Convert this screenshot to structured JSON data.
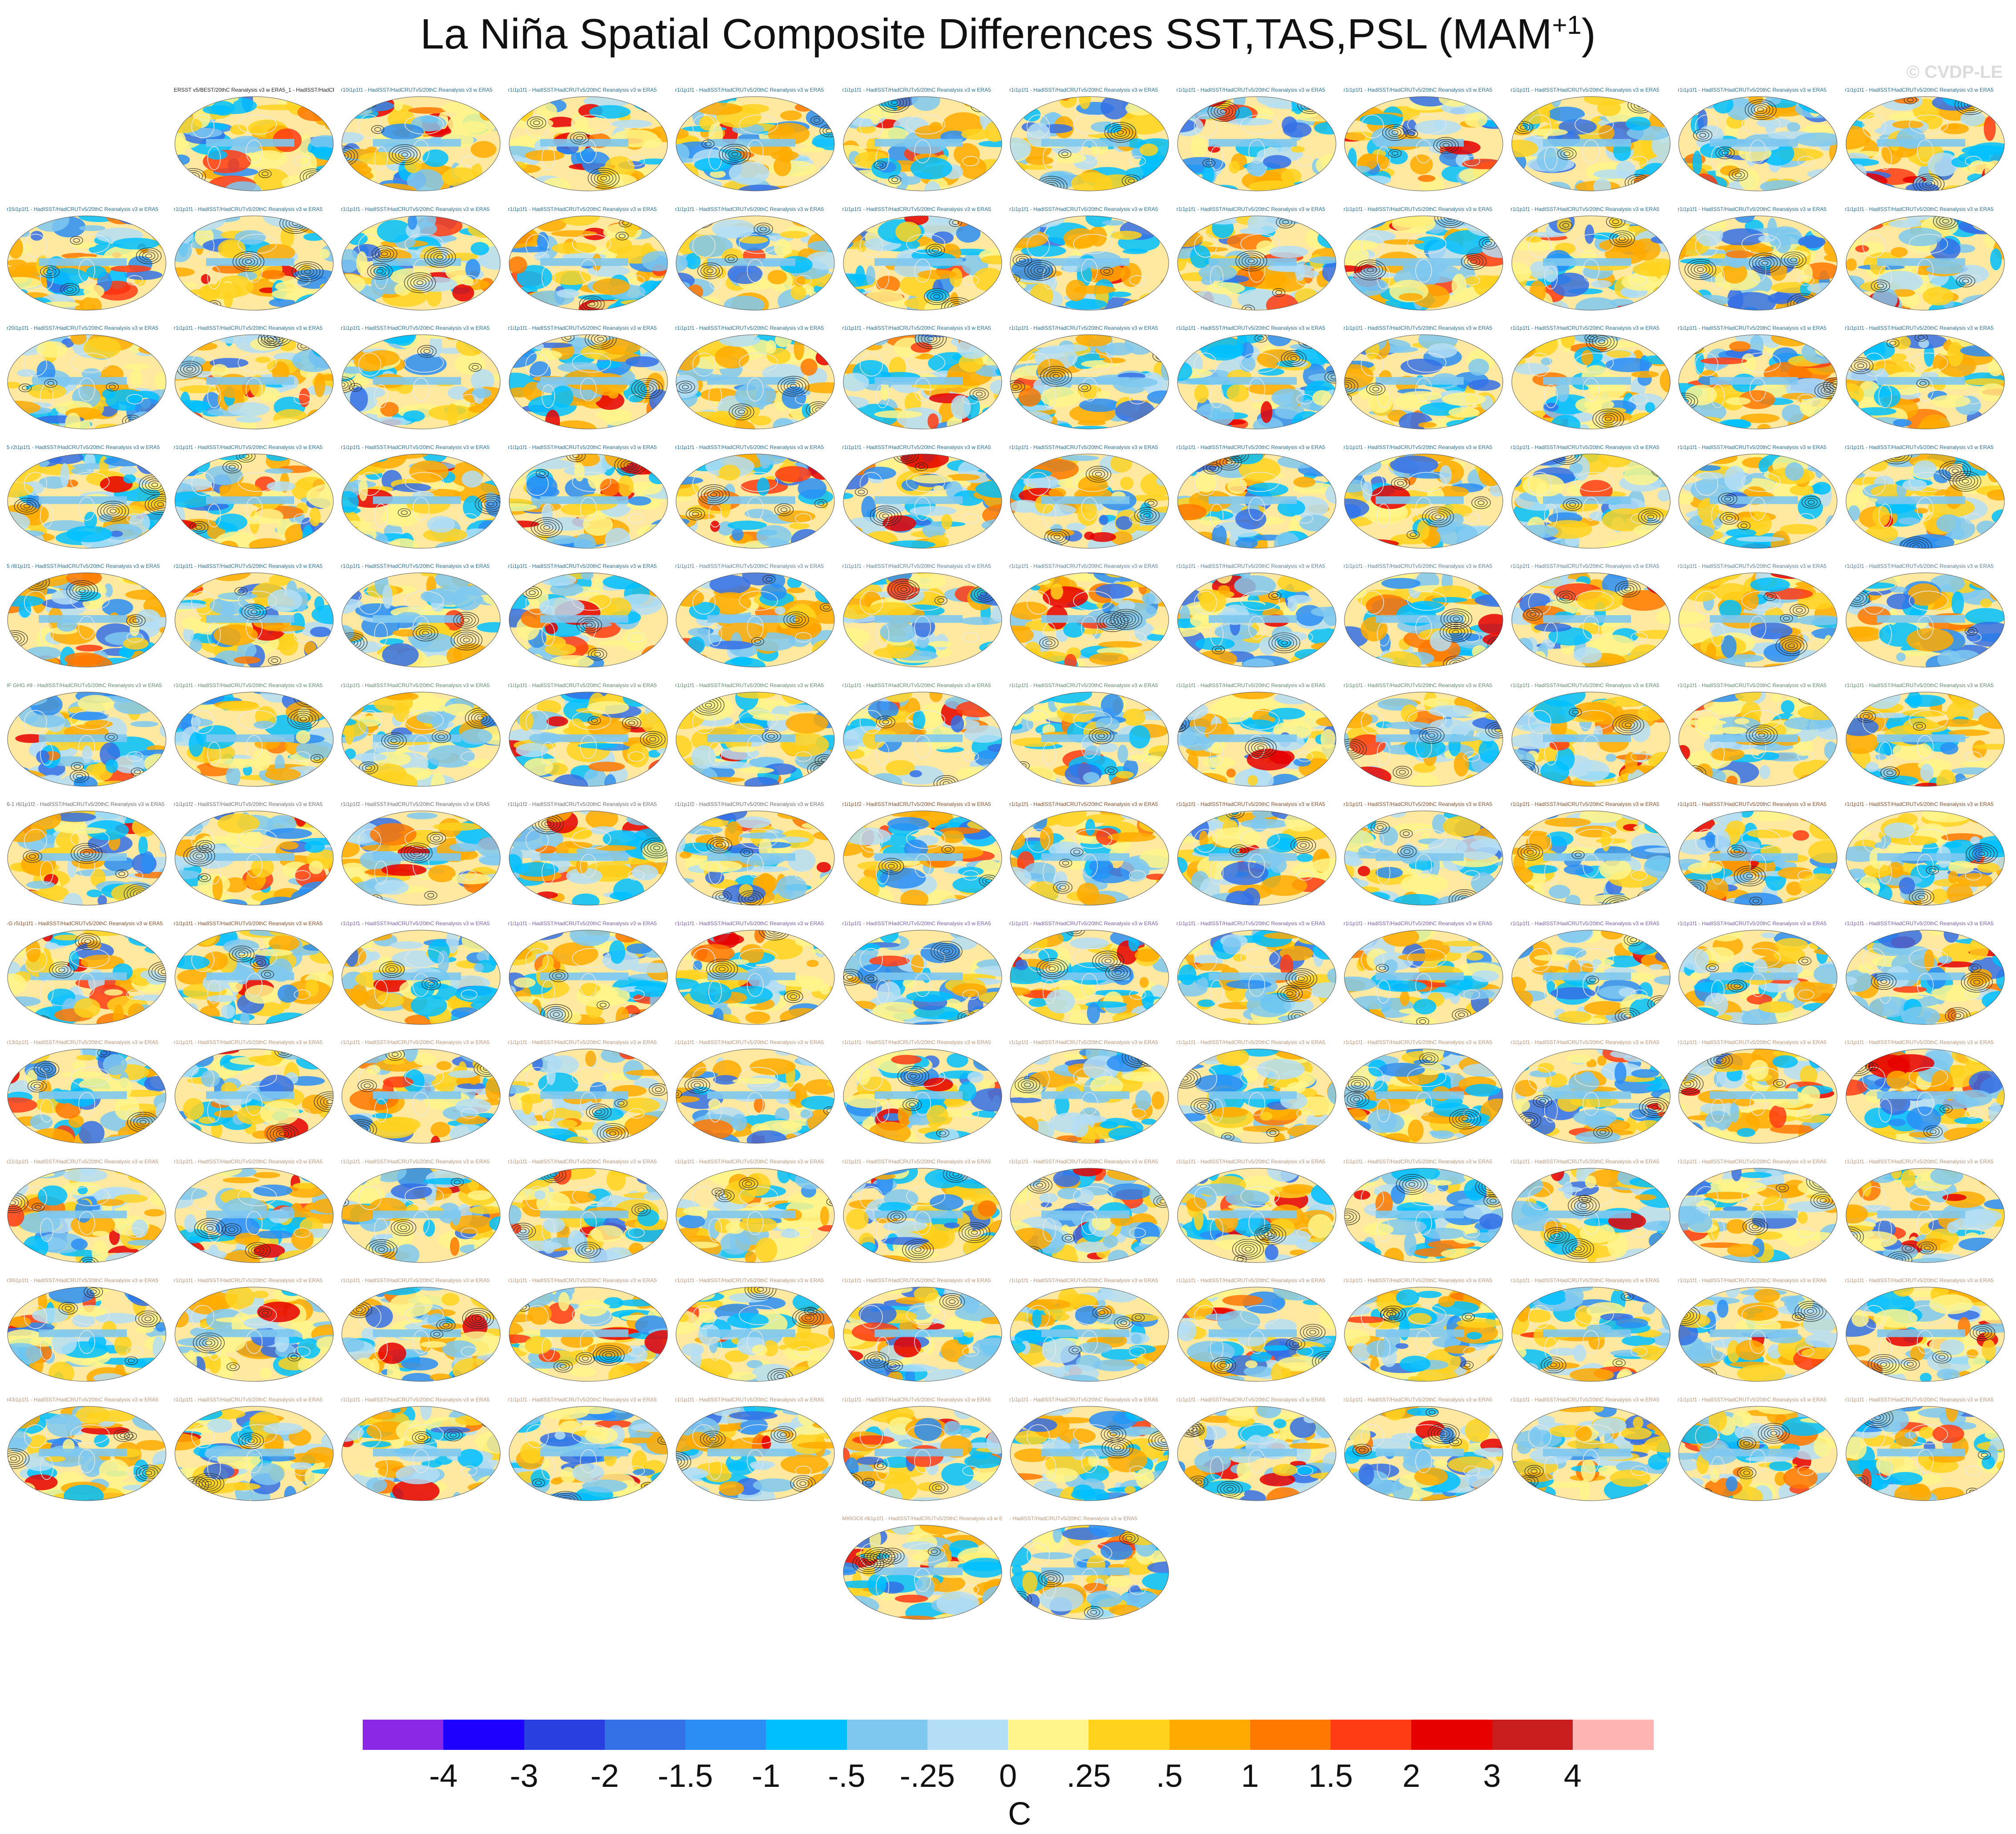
{
  "figure": {
    "title": "La Niña Spatial Composite Differences SST,TAS,PSL (MAM",
    "title_superscript": "+1",
    "title_suffix": ")",
    "watermark": "© CVDP-LE"
  },
  "panels": [
    {
      "id": 0,
      "label": "ERSST v5/BEST/20thC Reanalysis v3 w ERA5_1 - HadISST/HadCRUTv5/20thC Reanalysis v3 w ERA5",
      "color": "#222222"
    },
    {
      "id": 1,
      "label": "r10i1p1f1 - HadISST/HadCRUTv5/20thC Reanalysis v3 w ERA5",
      "color": "#2a6f97"
    },
    {
      "id": 2,
      "label": "r1i1p1f1 - HadISST/HadCRUTv5/20thC Reanalysis v3 w ERA5",
      "color": "#2a6f97"
    },
    {
      "id": 3,
      "label": "r1i1p1f1 - HadISST/HadCRUTv5/20thC Reanalysis v3 w ERA5",
      "color": "#2a6f97"
    },
    {
      "id": 4,
      "label": "r1i1p1f1 - HadISST/HadCRUTv5/20thC Reanalysis v3 w ERA5",
      "color": "#2a6f97"
    },
    {
      "id": 5,
      "label": "r1i1p1f1 - HadISST/HadCRUTv5/20thC Reanalysis v3 w ERA5",
      "color": "#2a6f97"
    },
    {
      "id": 6,
      "label": "r1i1p1f1 - HadISST/HadCRUTv5/20thC Reanalysis v3 w ERA5",
      "color": "#2a6f97"
    },
    {
      "id": 7,
      "label": "r1i1p1f1 - HadISST/HadCRUTv5/20thC Reanalysis v3 w ERA5",
      "color": "#2a6f97"
    },
    {
      "id": 8,
      "label": "r1i1p1f1 - HadISST/HadCRUTv5/20thC Reanalysis v3 w ERA5",
      "color": "#2a6f97"
    },
    {
      "id": 9,
      "label": "r1i1p1f1 - HadISST/HadCRUTv5/20thC Reanalysis v3 w ERA5",
      "color": "#2a6f97"
    },
    {
      "id": 10,
      "label": "r1i1p1f1 - HadISST/HadCRUTv5/20thC Reanalysis v3 w ERA5",
      "color": "#2a6f97"
    },
    {
      "id": 11,
      "label": "r15i1p1f1 - HadISST/HadCRUTv5/20thC Reanalysis v3 w ERA5",
      "color": "#2a6f97"
    },
    {
      "id": 12,
      "label": "r1i1p1f1 - HadISST/HadCRUTv5/20thC Reanalysis v3 w ERA5",
      "color": "#2a6f97"
    },
    {
      "id": 13,
      "label": "r1i1p1f1 - HadISST/HadCRUTv5/20thC Reanalysis v3 w ERA5",
      "color": "#2a6f97"
    },
    {
      "id": 14,
      "label": "r1i1p1f1 - HadISST/HadCRUTv5/20thC Reanalysis v3 w ERA5",
      "color": "#2a6f97"
    },
    {
      "id": 15,
      "label": "r1i1p1f1 - HadISST/HadCRUTv5/20thC Reanalysis v3 w ERA5",
      "color": "#2a6f97"
    },
    {
      "id": 16,
      "label": "r1i1p1f1 - HadISST/HadCRUTv5/20thC Reanalysis v3 w ERA5",
      "color": "#2a6f97"
    },
    {
      "id": 17,
      "label": "r1i1p1f1 - HadISST/HadCRUTv5/20thC Reanalysis v3 w ERA5",
      "color": "#2a6f97"
    },
    {
      "id": 18,
      "label": "r1i1p1f1 - HadISST/HadCRUTv5/20thC Reanalysis v3 w ERA5",
      "color": "#2a6f97"
    },
    {
      "id": 19,
      "label": "r1i1p1f1 - HadISST/HadCRUTv5/20thC Reanalysis v3 w ERA5",
      "color": "#2a6f97"
    },
    {
      "id": 20,
      "label": "r1i1p1f1 - HadISST/HadCRUTv5/20thC Reanalysis v3 w ERA5",
      "color": "#2a6f97"
    },
    {
      "id": 21,
      "label": "r1i1p1f1 - HadISST/HadCRUTv5/20thC Reanalysis v3 w ERA5",
      "color": "#2a6f97"
    },
    {
      "id": 22,
      "label": "r1i1p1f1 - HadISST/HadCRUTv5/20thC Reanalysis v3 w ERA5",
      "color": "#2a6f97"
    },
    {
      "id": 23,
      "label": "r20i1p1f1 - HadISST/HadCRUTv5/20thC Reanalysis v3 w ERA5",
      "color": "#2a6f97"
    },
    {
      "id": 24,
      "label": "r1i1p1f1 - HadISST/HadCRUTv5/20thC Reanalysis v3 w ERA5",
      "color": "#2a6f97"
    },
    {
      "id": 25,
      "label": "r1i1p1f1 - HadISST/HadCRUTv5/20thC Reanalysis v3 w ERA5",
      "color": "#2a6f97"
    },
    {
      "id": 26,
      "label": "r1i1p1f1 - HadISST/HadCRUTv5/20thC Reanalysis v3 w ERA5",
      "color": "#2a6f97"
    },
    {
      "id": 27,
      "label": "r1i1p1f1 - HadISST/HadCRUTv5/20thC Reanalysis v3 w ERA5",
      "color": "#2a6f97"
    },
    {
      "id": 28,
      "label": "r1i1p1f1 - HadISST/HadCRUTv5/20thC Reanalysis v3 w ERA5",
      "color": "#2a6f97"
    },
    {
      "id": 29,
      "label": "r1i1p1f1 - HadISST/HadCRUTv5/20thC Reanalysis v3 w ERA5",
      "color": "#2a6f97"
    },
    {
      "id": 30,
      "label": "r1i1p1f1 - HadISST/HadCRUTv5/20thC Reanalysis v3 w ERA5",
      "color": "#2a6f97"
    },
    {
      "id": 31,
      "label": "r1i1p1f1 - HadISST/HadCRUTv5/20thC Reanalysis v3 w ERA5",
      "color": "#2a6f97"
    },
    {
      "id": 32,
      "label": "r1i1p1f1 - HadISST/HadCRUTv5/20thC Reanalysis v3 w ERA5",
      "color": "#2a6f97"
    },
    {
      "id": 33,
      "label": "r1i1p1f1 - HadISST/HadCRUTv5/20thC Reanalysis v3 w ERA5",
      "color": "#2a6f97"
    },
    {
      "id": 34,
      "label": "r1i1p1f1 - HadISST/HadCRUTv5/20thC Reanalysis v3 w ERA5",
      "color": "#2a6f97"
    },
    {
      "id": 35,
      "label": "5 r2i1p1f1 - HadISST/HadCRUTv5/20thC Reanalysis v3 w ERA5",
      "color": "#2a6f97"
    },
    {
      "id": 36,
      "label": "r1i1p1f1 - HadISST/HadCRUTv5/20thC Reanalysis v3 w ERA5",
      "color": "#2a6f97"
    },
    {
      "id": 37,
      "label": "r1i1p1f1 - HadISST/HadCRUTv5/20thC Reanalysis v3 w ERA5",
      "color": "#2a6f97"
    },
    {
      "id": 38,
      "label": "r1i1p1f1 - HadISST/HadCRUTv5/20thC Reanalysis v3 w ERA5",
      "color": "#2a6f97"
    },
    {
      "id": 39,
      "label": "r1i1p1f1 - HadISST/HadCRUTv5/20thC Reanalysis v3 w ERA5",
      "color": "#2a6f97"
    },
    {
      "id": 40,
      "label": "r1i1p1f1 - HadISST/HadCRUTv5/20thC Reanalysis v3 w ERA5",
      "color": "#2a6f97"
    },
    {
      "id": 41,
      "label": "r1i1p1f1 - HadISST/HadCRUTv5/20thC Reanalysis v3 w ERA5",
      "color": "#2a6f97"
    },
    {
      "id": 42,
      "label": "r1i1p1f1 - HadISST/HadCRUTv5/20thC Reanalysis v3 w ERA5",
      "color": "#2a6f97"
    },
    {
      "id": 43,
      "label": "r1i1p1f1 - HadISST/HadCRUTv5/20thC Reanalysis v3 w ERA5",
      "color": "#2a6f97"
    },
    {
      "id": 44,
      "label": "r1i1p1f1 - HadISST/HadCRUTv5/20thC Reanalysis v3 w ERA5",
      "color": "#2a6f97"
    },
    {
      "id": 45,
      "label": "r1i1p1f1 - HadISST/HadCRUTv5/20thC Reanalysis v3 w ERA5",
      "color": "#2a6f97"
    },
    {
      "id": 46,
      "label": "r1i1p1f1 - HadISST/HadCRUTv5/20thC Reanalysis v3 w ERA5",
      "color": "#2a6f97"
    },
    {
      "id": 47,
      "label": "5 r8i1p1f1 - HadISST/HadCRUTv5/20thC Reanalysis v3 w ERA5",
      "color": "#2a6f97"
    },
    {
      "id": 48,
      "label": "r1i1p1f1 - HadISST/HadCRUTv5/20thC Reanalysis v3 w ERA5",
      "color": "#2a6f97"
    },
    {
      "id": 49,
      "label": "r1i1p1f1 - HadISST/HadCRUTv5/20thC Reanalysis v3 w ERA5",
      "color": "#2a6f97"
    },
    {
      "id": 50,
      "label": "r1i1p1f1 - HadISST/HadCRUTv5/20thC Reanalysis v3 w ERA5",
      "color": "#2a6f97"
    },
    {
      "id": 51,
      "label": "r1i1p1f1 - HadISST/HadCRUTv5/20thC Reanalysis v3 w ERA5",
      "color": "#5a7fa0"
    },
    {
      "id": 52,
      "label": "r1i1p1f1 - HadISST/HadCRUTv5/20thC Reanalysis v3 w ERA5",
      "color": "#5a7fa0"
    },
    {
      "id": 53,
      "label": "r1i1p1f1 - HadISST/HadCRUTv5/20thC Reanalysis v3 w ERA5",
      "color": "#5a7fa0"
    },
    {
      "id": 54,
      "label": "r1i1p1f1 - HadISST/HadCRUTv5/20thC Reanalysis v3 w ERA5",
      "color": "#5a7fa0"
    },
    {
      "id": 55,
      "label": "r1i1p1f1 - HadISST/HadCRUTv5/20thC Reanalysis v3 w ERA5",
      "color": "#5a7fa0"
    },
    {
      "id": 56,
      "label": "r1i1p1f1 - HadISST/HadCRUTv5/20thC Reanalysis v3 w ERA5",
      "color": "#5a7fa0"
    },
    {
      "id": 57,
      "label": "r1i1p1f1 - HadISST/HadCRUTv5/20thC Reanalysis v3 w ERA5",
      "color": "#5a7fa0"
    },
    {
      "id": 58,
      "label": "r1i1p1f1 - HadISST/HadCRUTv5/20thC Reanalysis v3 w ERA5",
      "color": "#5a7fa0"
    },
    {
      "id": 59,
      "label": "IF GHG #9 - HadISST/HadCRUTv5/20thC Reanalysis v3 w ERA5",
      "color": "#5f8a6a"
    },
    {
      "id": 60,
      "label": "r1i1p1f1 - HadISST/HadCRUTv5/20thC Reanalysis v3 w ERA5",
      "color": "#5f8a6a"
    },
    {
      "id": 61,
      "label": "r1i1p1f1 - HadISST/HadCRUTv5/20thC Reanalysis v3 w ERA5",
      "color": "#5f8a6a"
    },
    {
      "id": 62,
      "label": "r1i1p1f1 - HadISST/HadCRUTv5/20thC Reanalysis v3 w ERA5",
      "color": "#5f8a6a"
    },
    {
      "id": 63,
      "label": "r1i1p1f1 - HadISST/HadCRUTv5/20thC Reanalysis v3 w ERA5",
      "color": "#5f8a6a"
    },
    {
      "id": 64,
      "label": "r1i1p1f1 - HadISST/HadCRUTv5/20thC Reanalysis v3 w ERA5",
      "color": "#5f8a6a"
    },
    {
      "id": 65,
      "label": "r1i1p1f1 - HadISST/HadCRUTv5/20thC Reanalysis v3 w ERA5",
      "color": "#5f8a6a"
    },
    {
      "id": 66,
      "label": "r1i1p1f1 - HadISST/HadCRUTv5/20thC Reanalysis v3 w ERA5",
      "color": "#5f8a6a"
    },
    {
      "id": 67,
      "label": "r1i1p1f1 - HadISST/HadCRUTv5/20thC Reanalysis v3 w ERA5",
      "color": "#5f8a6a"
    },
    {
      "id": 68,
      "label": "r1i1p1f1 - HadISST/HadCRUTv5/20thC Reanalysis v3 w ERA5",
      "color": "#5f8a6a"
    },
    {
      "id": 69,
      "label": "r1i1p1f1 - HadISST/HadCRUTv5/20thC Reanalysis v3 w ERA5",
      "color": "#5f8a6a"
    },
    {
      "id": 70,
      "label": "r1i1p1f1 - HadISST/HadCRUTv5/20thC Reanalysis v3 w ERA5",
      "color": "#5f8a6a"
    },
    {
      "id": 71,
      "label": "6-1 r6i1p1f2 - HadISST/HadCRUTv5/20thC Reanalysis v3 w ERA5",
      "color": "#6f6f6f"
    },
    {
      "id": 72,
      "label": "r1i1p1f2 - HadISST/HadCRUTv5/20thC Reanalysis v3 w ERA5",
      "color": "#6f6f6f"
    },
    {
      "id": 73,
      "label": "r1i1p1f2 - HadISST/HadCRUTv5/20thC Reanalysis v3 w ERA5",
      "color": "#6f6f6f"
    },
    {
      "id": 74,
      "label": "r1i1p1f2 - HadISST/HadCRUTv5/20thC Reanalysis v3 w ERA5",
      "color": "#6f6f6f"
    },
    {
      "id": 75,
      "label": "r1i1p1f2 - HadISST/HadCRUTv5/20thC Reanalysis v3 w ERA5",
      "color": "#6f6f6f"
    },
    {
      "id": 76,
      "label": "r1i1p1f2 - HadISST/HadCRUTv5/20thC Reanalysis v3 w ERA5",
      "color": "#8a4f2a"
    },
    {
      "id": 77,
      "label": "r1i1p1f1 - HadISST/HadCRUTv5/20thC Reanalysis v3 w ERA5",
      "color": "#8a4f2a"
    },
    {
      "id": 78,
      "label": "r1i1p1f1 - HadISST/HadCRUTv5/20thC Reanalysis v3 w ERA5",
      "color": "#8a4f2a"
    },
    {
      "id": 79,
      "label": "r1i1p1f1 - HadISST/HadCRUTv5/20thC Reanalysis v3 w ERA5",
      "color": "#8a4f2a"
    },
    {
      "id": 80,
      "label": "r1i1p1f1 - HadISST/HadCRUTv5/20thC Reanalysis v3 w ERA5",
      "color": "#8a4f2a"
    },
    {
      "id": 81,
      "label": "r1i1p1f1 - HadISST/HadCRUTv5/20thC Reanalysis v3 w ERA5",
      "color": "#8a4f2a"
    },
    {
      "id": 82,
      "label": "r1i1p1f1 - HadISST/HadCRUTv5/20thC Reanalysis v3 w ERA5",
      "color": "#8a4f2a"
    },
    {
      "id": 83,
      "label": "-G r5i1p1f1 - HadISST/HadCRUTv5/20thC Reanalysis v3 w ERA5",
      "color": "#8a4f2a"
    },
    {
      "id": 84,
      "label": "r1i1p1f1 - HadISST/HadCRUTv5/20thC Reanalysis v3 w ERA5",
      "color": "#8a4f2a"
    },
    {
      "id": 85,
      "label": "r1i1p1f1 - HadISST/HadCRUTv5/20thC Reanalysis v3 w ERA5",
      "color": "#7a5fb0"
    },
    {
      "id": 86,
      "label": "r1i1p1f1 - HadISST/HadCRUTv5/20thC Reanalysis v3 w ERA5",
      "color": "#7a5fb0"
    },
    {
      "id": 87,
      "label": "r1i1p1f1 - HadISST/HadCRUTv5/20thC Reanalysis v3 w ERA5",
      "color": "#7a5fb0"
    },
    {
      "id": 88,
      "label": "r1i1p1f1 - HadISST/HadCRUTv5/20thC Reanalysis v3 w ERA5",
      "color": "#7a5fb0"
    },
    {
      "id": 89,
      "label": "r1i1p1f1 - HadISST/HadCRUTv5/20thC Reanalysis v3 w ERA5",
      "color": "#7a5fb0"
    },
    {
      "id": 90,
      "label": "r1i1p1f1 - HadISST/HadCRUTv5/20thC Reanalysis v3 w ERA5",
      "color": "#7a5fb0"
    },
    {
      "id": 91,
      "label": "r1i1p1f1 - HadISST/HadCRUTv5/20thC Reanalysis v3 w ERA5",
      "color": "#7a5fb0"
    },
    {
      "id": 92,
      "label": "r1i1p1f1 - HadISST/HadCRUTv5/20thC Reanalysis v3 w ERA5",
      "color": "#7a5fb0"
    },
    {
      "id": 93,
      "label": "r1i1p1f1 - HadISST/HadCRUTv5/20thC Reanalysis v3 w ERA5",
      "color": "#7a5fb0"
    },
    {
      "id": 94,
      "label": "r1i1p1f1 - HadISST/HadCRUTv5/20thC Reanalysis v3 w ERA5",
      "color": "#7a5fb0"
    },
    {
      "id": 95,
      "label": "r13i1p1f1 - HadISST/HadCRUTv5/20thC Reanalysis v3 w ERA5",
      "color": "#c0967a"
    },
    {
      "id": 96,
      "label": "r1i1p1f1 - HadISST/HadCRUTv5/20thC Reanalysis v3 w ERA5",
      "color": "#c0967a"
    },
    {
      "id": 97,
      "label": "r1i1p1f1 - HadISST/HadCRUTv5/20thC Reanalysis v3 w ERA5",
      "color": "#c0967a"
    },
    {
      "id": 98,
      "label": "r1i1p1f1 - HadISST/HadCRUTv5/20thC Reanalysis v3 w ERA5",
      "color": "#c0967a"
    },
    {
      "id": 99,
      "label": "r1i1p1f1 - HadISST/HadCRUTv5/20thC Reanalysis v3 w ERA5",
      "color": "#c0967a"
    },
    {
      "id": 100,
      "label": "r1i1p1f1 - HadISST/HadCRUTv5/20thC Reanalysis v3 w ERA5",
      "color": "#c0967a"
    },
    {
      "id": 101,
      "label": "r1i1p1f1 - HadISST/HadCRUTv5/20thC Reanalysis v3 w ERA5",
      "color": "#c0967a"
    },
    {
      "id": 102,
      "label": "r1i1p1f1 - HadISST/HadCRUTv5/20thC Reanalysis v3 w ERA5",
      "color": "#c0967a"
    },
    {
      "id": 103,
      "label": "r1i1p1f1 - HadISST/HadCRUTv5/20thC Reanalysis v3 w ERA5",
      "color": "#c0967a"
    },
    {
      "id": 104,
      "label": "r1i1p1f1 - HadISST/HadCRUTv5/20thC Reanalysis v3 w ERA5",
      "color": "#c0967a"
    },
    {
      "id": 105,
      "label": "r1i1p1f1 - HadISST/HadCRUTv5/20thC Reanalysis v3 w ERA5",
      "color": "#c0967a"
    },
    {
      "id": 106,
      "label": "r1i1p1f1 - HadISST/HadCRUTv5/20thC Reanalysis v3 w ERA5",
      "color": "#c0967a"
    },
    {
      "id": 107,
      "label": "r21i1p1f1 - HadISST/HadCRUTv5/20thC Reanalysis v3 w ERA5",
      "color": "#c0967a"
    },
    {
      "id": 108,
      "label": "r1i1p1f1 - HadISST/HadCRUTv5/20thC Reanalysis v3 w ERA5",
      "color": "#c0967a"
    },
    {
      "id": 109,
      "label": "r1i1p1f1 - HadISST/HadCRUTv5/20thC Reanalysis v3 w ERA5",
      "color": "#c0967a"
    },
    {
      "id": 110,
      "label": "r1i1p1f1 - HadISST/HadCRUTv5/20thC Reanalysis v3 w ERA5",
      "color": "#c0967a"
    },
    {
      "id": 111,
      "label": "r1i1p1f1 - HadISST/HadCRUTv5/20thC Reanalysis v3 w ERA5",
      "color": "#c0967a"
    },
    {
      "id": 112,
      "label": "r1i1p1f1 - HadISST/HadCRUTv5/20thC Reanalysis v3 w ERA5",
      "color": "#c0967a"
    },
    {
      "id": 113,
      "label": "r1i1p1f1 - HadISST/HadCRUTv5/20thC Reanalysis v3 w ERA5",
      "color": "#c0967a"
    },
    {
      "id": 114,
      "label": "r1i1p1f1 - HadISST/HadCRUTv5/20thC Reanalysis v3 w ERA5",
      "color": "#c0967a"
    },
    {
      "id": 115,
      "label": "r1i1p1f1 - HadISST/HadCRUTv5/20thC Reanalysis v3 w ERA5",
      "color": "#c0967a"
    },
    {
      "id": 116,
      "label": "r1i1p1f1 - HadISST/HadCRUTv5/20thC Reanalysis v3 w ERA5",
      "color": "#c0967a"
    },
    {
      "id": 117,
      "label": "r1i1p1f1 - HadISST/HadCRUTv5/20thC Reanalysis v3 w ERA5",
      "color": "#c0967a"
    },
    {
      "id": 118,
      "label": "r1i1p1f1 - HadISST/HadCRUTv5/20thC Reanalysis v3 w ERA5",
      "color": "#c0967a"
    },
    {
      "id": 119,
      "label": "r30i1p1f1 - HadISST/HadCRUTv5/20thC Reanalysis v3 w ERA5",
      "color": "#c0967a"
    },
    {
      "id": 120,
      "label": "r1i1p1f1 - HadISST/HadCRUTv5/20thC Reanalysis v3 w ERA5",
      "color": "#c0967a"
    },
    {
      "id": 121,
      "label": "r1i1p1f1 - HadISST/HadCRUTv5/20thC Reanalysis v3 w ERA5",
      "color": "#c0967a"
    },
    {
      "id": 122,
      "label": "r1i1p1f1 - HadISST/HadCRUTv5/20thC Reanalysis v3 w ERA5",
      "color": "#c0967a"
    },
    {
      "id": 123,
      "label": "r1i1p1f1 - HadISST/HadCRUTv5/20thC Reanalysis v3 w ERA5",
      "color": "#c0967a"
    },
    {
      "id": 124,
      "label": "r1i1p1f1 - HadISST/HadCRUTv5/20thC Reanalysis v3 w ERA5",
      "color": "#c0967a"
    },
    {
      "id": 125,
      "label": "r1i1p1f1 - HadISST/HadCRUTv5/20thC Reanalysis v3 w ERA5",
      "color": "#c0967a"
    },
    {
      "id": 126,
      "label": "r1i1p1f1 - HadISST/HadCRUTv5/20thC Reanalysis v3 w ERA5",
      "color": "#c0967a"
    },
    {
      "id": 127,
      "label": "r1i1p1f1 - HadISST/HadCRUTv5/20thC Reanalysis v3 w ERA5",
      "color": "#c0967a"
    },
    {
      "id": 128,
      "label": "r1i1p1f1 - HadISST/HadCRUTv5/20thC Reanalysis v3 w ERA5",
      "color": "#c0967a"
    },
    {
      "id": 129,
      "label": "r1i1p1f1 - HadISST/HadCRUTv5/20thC Reanalysis v3 w ERA5",
      "color": "#c0967a"
    },
    {
      "id": 130,
      "label": "r1i1p1f1 - HadISST/HadCRUTv5/20thC Reanalysis v3 w ERA5",
      "color": "#c0967a"
    },
    {
      "id": 131,
      "label": "r43i1p1f1 - HadISST/HadCRUTv5/20thC Reanalysis v3 w ERA5",
      "color": "#c0967a"
    },
    {
      "id": 132,
      "label": "r1i1p1f1 - HadISST/HadCRUTv5/20thC Reanalysis v3 w ERA5",
      "color": "#c0967a"
    },
    {
      "id": 133,
      "label": "r1i1p1f1 - HadISST/HadCRUTv5/20thC Reanalysis v3 w ERA5",
      "color": "#c0967a"
    },
    {
      "id": 134,
      "label": "r1i1p1f1 - HadISST/HadCRUTv5/20thC Reanalysis v3 w ERA5",
      "color": "#c0967a"
    },
    {
      "id": 135,
      "label": "r1i1p1f1 - HadISST/HadCRUTv5/20thC Reanalysis v3 w ERA5",
      "color": "#c0967a"
    },
    {
      "id": 136,
      "label": "r1i1p1f1 - HadISST/HadCRUTv5/20thC Reanalysis v3 w ERA5",
      "color": "#c0967a"
    },
    {
      "id": 137,
      "label": "r1i1p1f1 - HadISST/HadCRUTv5/20thC Reanalysis v3 w ERA5",
      "color": "#c0967a"
    },
    {
      "id": 138,
      "label": "r1i1p1f1 - HadISST/HadCRUTv5/20thC Reanalysis v3 w ERA5",
      "color": "#c0967a"
    },
    {
      "id": 139,
      "label": "r1i1p1f1 - HadISST/HadCRUTv5/20thC Reanalysis v3 w ERA5",
      "color": "#c0967a"
    },
    {
      "id": 140,
      "label": "r1i1p1f1 - HadISST/HadCRUTv5/20thC Reanalysis v3 w ERA5",
      "color": "#c0967a"
    },
    {
      "id": 141,
      "label": "r1i1p1f1 - HadISST/HadCRUTv5/20thC Reanalysis v3 w ERA5",
      "color": "#c0967a"
    },
    {
      "id": 142,
      "label": "r1i1p1f1 - HadISST/HadCRUTv5/20thC Reanalysis v3 w ERA5",
      "color": "#c0967a"
    },
    {
      "id": 143,
      "label": "MIROC6 r8i1p1f1 - HadISST/HadCRUTv5/20thC Reanalysis v3 w ERA5",
      "color": "#c0967a"
    },
    {
      "id": 144,
      "label": "- HadISST/HadCRUTv5/20thC Reanalysis v3 w ERA5",
      "color": "#c0967a"
    }
  ],
  "colorbar": {
    "colors": [
      "#8a28e6",
      "#1e00ff",
      "#2a3fe0",
      "#3470e6",
      "#2a8ef5",
      "#00bfff",
      "#7ec8f0",
      "#b4def5",
      "#fff58a",
      "#ffd21e",
      "#ffaa00",
      "#ff7800",
      "#ff3c14",
      "#e60000",
      "#c81e1e",
      "#ffb4b4"
    ],
    "tick_labels": [
      "-4",
      "-3",
      "-2",
      "-1.5",
      "-1",
      "-.5",
      "-.25",
      "0",
      ".25",
      ".5",
      "1",
      "1.5",
      "2",
      "3",
      "4"
    ],
    "units": "C"
  }
}
